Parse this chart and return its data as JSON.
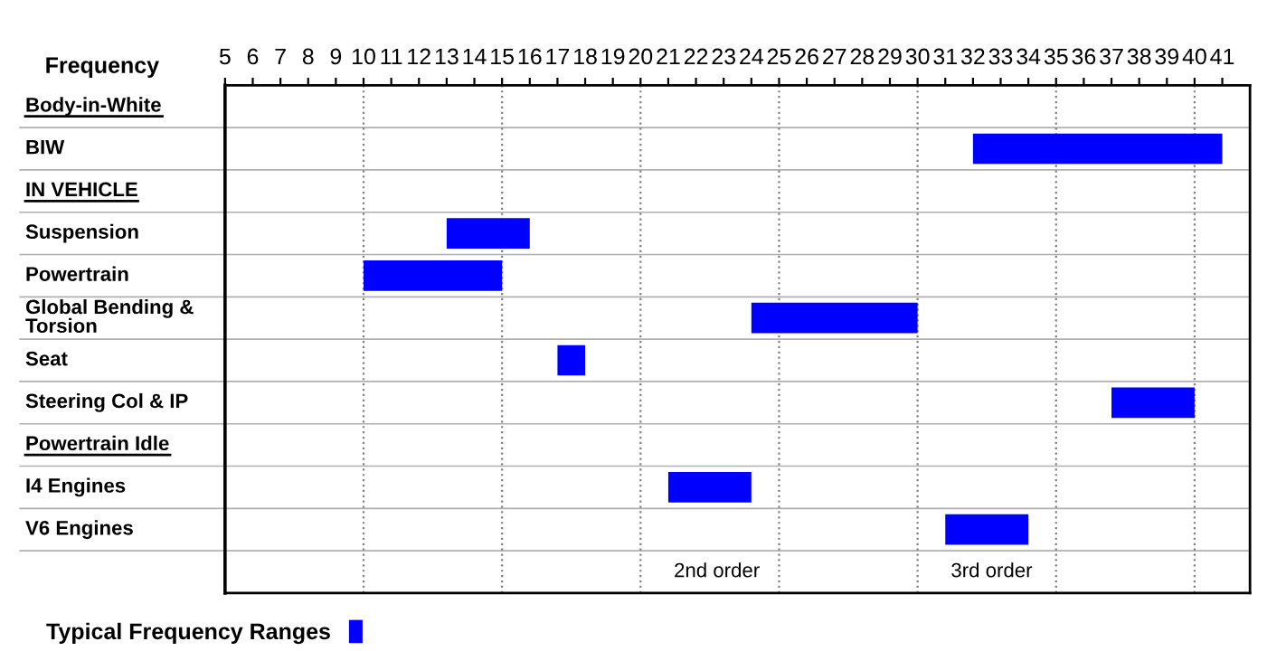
{
  "chart_data": {
    "type": "bar",
    "orientation": "horizontal",
    "xlabel": "Frequency",
    "categories": [
      "Body-in-White",
      "BIW",
      "IN VEHICLE",
      "Suspension",
      "Powertrain",
      "Global Bending & Torsion",
      "Seat",
      "Steering Col & IP",
      "Powertrain Idle",
      "I4 Engines",
      "V6 Engines",
      null
    ],
    "series": [
      {
        "name": "Typical Frequency Ranges",
        "color": "#0000ff",
        "base": [
          null,
          32,
          null,
          13,
          10,
          24,
          17,
          37,
          null,
          21,
          31,
          null
        ],
        "values": [
          null,
          9,
          null,
          3,
          5,
          6,
          1,
          3,
          null,
          3,
          3,
          null
        ]
      }
    ],
    "xlim": [
      5,
      42
    ],
    "xticks": [
      5,
      6,
      7,
      8,
      9,
      10,
      11,
      12,
      13,
      14,
      15,
      16,
      17,
      18,
      19,
      20,
      21,
      22,
      23,
      24,
      25,
      26,
      27,
      28,
      29,
      30,
      31,
      32,
      33,
      34,
      35,
      36,
      37,
      38,
      39,
      40,
      41
    ],
    "ref_lines": [
      {
        "axis": "x",
        "value": 10,
        "line_style": "dotted",
        "color": "#808080"
      },
      {
        "axis": "x",
        "value": 15,
        "line_style": "dotted",
        "color": "#808080"
      },
      {
        "axis": "x",
        "value": 20,
        "line_style": "dotted",
        "color": "#808080"
      },
      {
        "axis": "x",
        "value": 25,
        "line_style": "dotted",
        "color": "#808080"
      },
      {
        "axis": "x",
        "value": 30,
        "line_style": "dotted",
        "color": "#808080"
      },
      {
        "axis": "x",
        "value": 35,
        "line_style": "dotted",
        "color": "#808080"
      },
      {
        "axis": "x",
        "value": 40,
        "line_style": "dotted",
        "color": "#808080"
      }
    ],
    "annotations": [
      "2nd order",
      "3rd order"
    ],
    "legend": "bottom left"
  }
}
